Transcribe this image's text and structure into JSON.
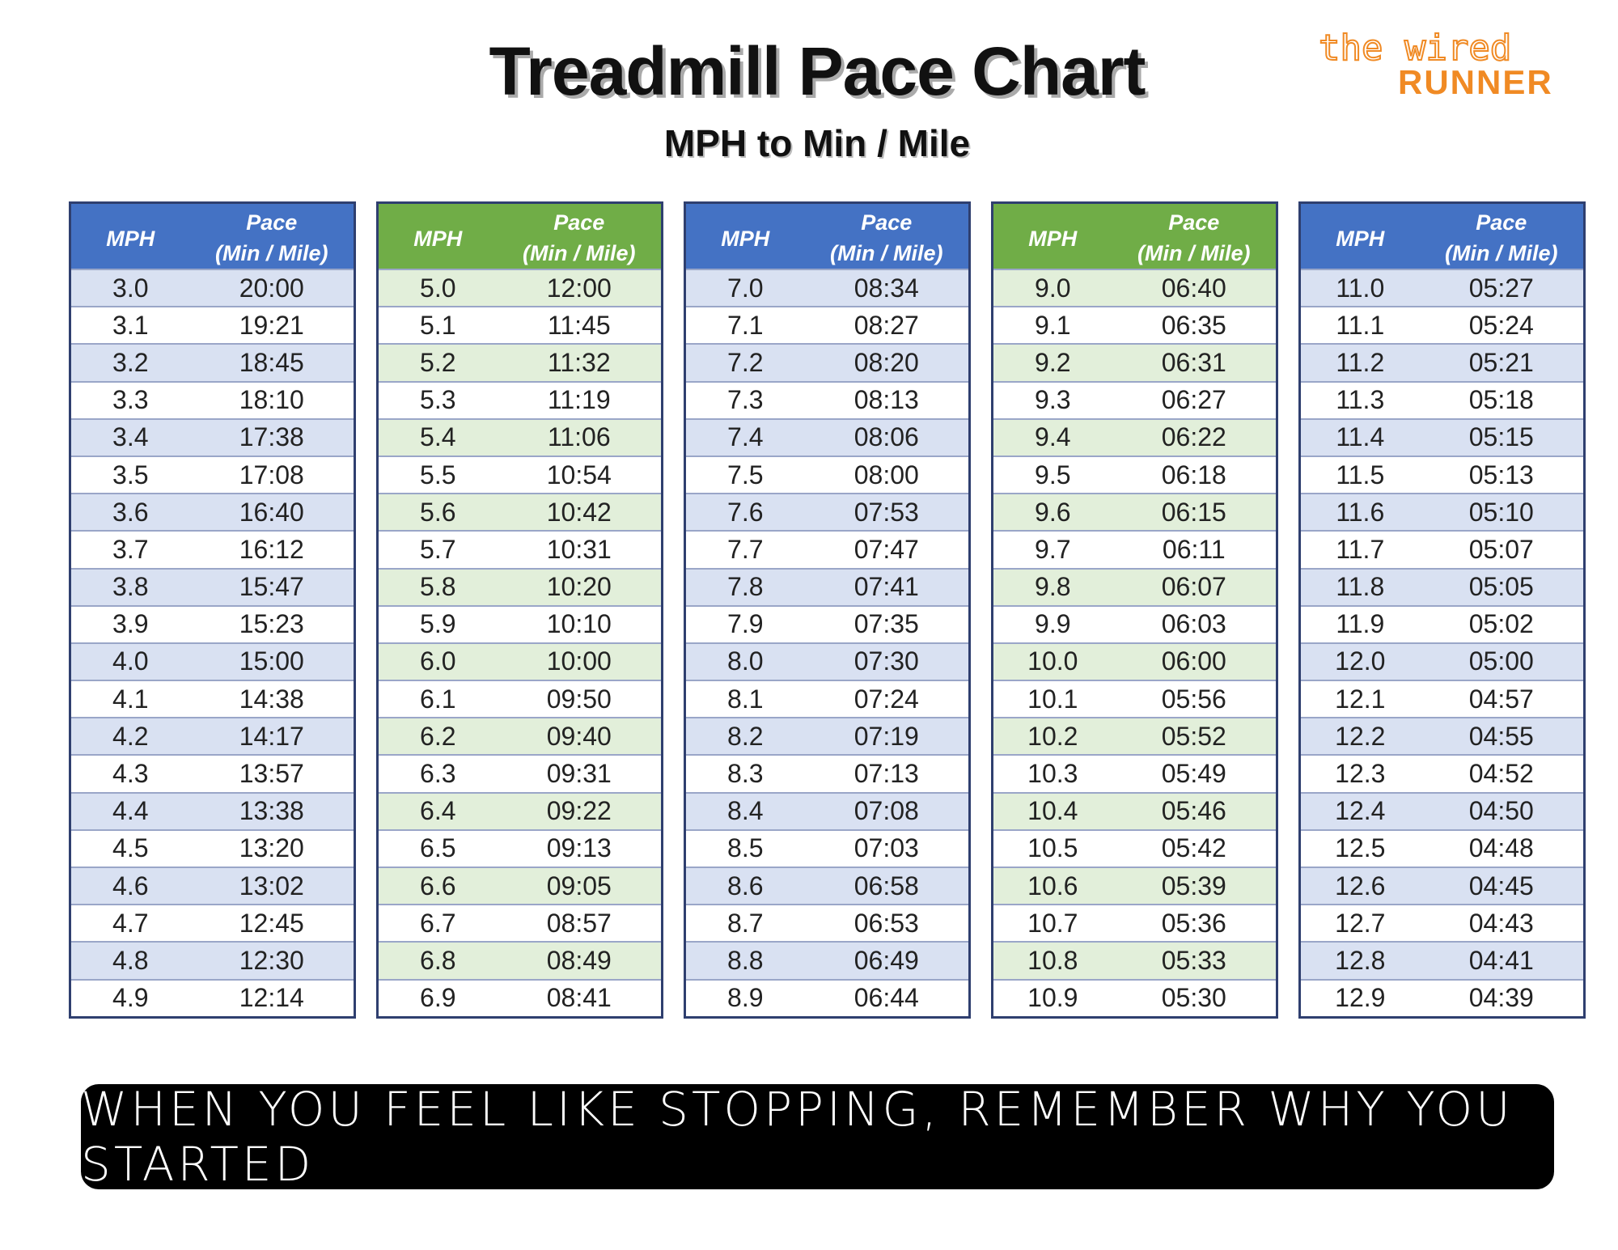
{
  "header": {
    "title": "Treadmill Pace Chart",
    "subtitle": "MPH to Min / Mile"
  },
  "logo": {
    "line1": "the wired",
    "line2": "RUNNER"
  },
  "tables": [
    {
      "color": "#4472c4",
      "stripe": "#d9e1f2",
      "columns": [
        "MPH",
        "Pace",
        "(Min / Mile)"
      ],
      "rows": [
        [
          "3.0",
          "20:00"
        ],
        [
          "3.1",
          "19:21"
        ],
        [
          "3.2",
          "18:45"
        ],
        [
          "3.3",
          "18:10"
        ],
        [
          "3.4",
          "17:38"
        ],
        [
          "3.5",
          "17:08"
        ],
        [
          "3.6",
          "16:40"
        ],
        [
          "3.7",
          "16:12"
        ],
        [
          "3.8",
          "15:47"
        ],
        [
          "3.9",
          "15:23"
        ],
        [
          "4.0",
          "15:00"
        ],
        [
          "4.1",
          "14:38"
        ],
        [
          "4.2",
          "14:17"
        ],
        [
          "4.3",
          "13:57"
        ],
        [
          "4.4",
          "13:38"
        ],
        [
          "4.5",
          "13:20"
        ],
        [
          "4.6",
          "13:02"
        ],
        [
          "4.7",
          "12:45"
        ],
        [
          "4.8",
          "12:30"
        ],
        [
          "4.9",
          "12:14"
        ]
      ]
    },
    {
      "color": "#70ad47",
      "stripe": "#e2efda",
      "columns": [
        "MPH",
        "Pace",
        "(Min / Mile)"
      ],
      "rows": [
        [
          "5.0",
          "12:00"
        ],
        [
          "5.1",
          "11:45"
        ],
        [
          "5.2",
          "11:32"
        ],
        [
          "5.3",
          "11:19"
        ],
        [
          "5.4",
          "11:06"
        ],
        [
          "5.5",
          "10:54"
        ],
        [
          "5.6",
          "10:42"
        ],
        [
          "5.7",
          "10:31"
        ],
        [
          "5.8",
          "10:20"
        ],
        [
          "5.9",
          "10:10"
        ],
        [
          "6.0",
          "10:00"
        ],
        [
          "6.1",
          "09:50"
        ],
        [
          "6.2",
          "09:40"
        ],
        [
          "6.3",
          "09:31"
        ],
        [
          "6.4",
          "09:22"
        ],
        [
          "6.5",
          "09:13"
        ],
        [
          "6.6",
          "09:05"
        ],
        [
          "6.7",
          "08:57"
        ],
        [
          "6.8",
          "08:49"
        ],
        [
          "6.9",
          "08:41"
        ]
      ]
    },
    {
      "color": "#4472c4",
      "stripe": "#d9e1f2",
      "columns": [
        "MPH",
        "Pace",
        "(Min / Mile)"
      ],
      "rows": [
        [
          "7.0",
          "08:34"
        ],
        [
          "7.1",
          "08:27"
        ],
        [
          "7.2",
          "08:20"
        ],
        [
          "7.3",
          "08:13"
        ],
        [
          "7.4",
          "08:06"
        ],
        [
          "7.5",
          "08:00"
        ],
        [
          "7.6",
          "07:53"
        ],
        [
          "7.7",
          "07:47"
        ],
        [
          "7.8",
          "07:41"
        ],
        [
          "7.9",
          "07:35"
        ],
        [
          "8.0",
          "07:30"
        ],
        [
          "8.1",
          "07:24"
        ],
        [
          "8.2",
          "07:19"
        ],
        [
          "8.3",
          "07:13"
        ],
        [
          "8.4",
          "07:08"
        ],
        [
          "8.5",
          "07:03"
        ],
        [
          "8.6",
          "06:58"
        ],
        [
          "8.7",
          "06:53"
        ],
        [
          "8.8",
          "06:49"
        ],
        [
          "8.9",
          "06:44"
        ]
      ]
    },
    {
      "color": "#70ad47",
      "stripe": "#e2efda",
      "columns": [
        "MPH",
        "Pace",
        "(Min / Mile)"
      ],
      "rows": [
        [
          "9.0",
          "06:40"
        ],
        [
          "9.1",
          "06:35"
        ],
        [
          "9.2",
          "06:31"
        ],
        [
          "9.3",
          "06:27"
        ],
        [
          "9.4",
          "06:22"
        ],
        [
          "9.5",
          "06:18"
        ],
        [
          "9.6",
          "06:15"
        ],
        [
          "9.7",
          "06:11"
        ],
        [
          "9.8",
          "06:07"
        ],
        [
          "9.9",
          "06:03"
        ],
        [
          "10.0",
          "06:00"
        ],
        [
          "10.1",
          "05:56"
        ],
        [
          "10.2",
          "05:52"
        ],
        [
          "10.3",
          "05:49"
        ],
        [
          "10.4",
          "05:46"
        ],
        [
          "10.5",
          "05:42"
        ],
        [
          "10.6",
          "05:39"
        ],
        [
          "10.7",
          "05:36"
        ],
        [
          "10.8",
          "05:33"
        ],
        [
          "10.9",
          "05:30"
        ]
      ]
    },
    {
      "color": "#4472c4",
      "stripe": "#d9e1f2",
      "columns": [
        "MPH",
        "Pace",
        "(Min / Mile)"
      ],
      "rows": [
        [
          "11.0",
          "05:27"
        ],
        [
          "11.1",
          "05:24"
        ],
        [
          "11.2",
          "05:21"
        ],
        [
          "11.3",
          "05:18"
        ],
        [
          "11.4",
          "05:15"
        ],
        [
          "11.5",
          "05:13"
        ],
        [
          "11.6",
          "05:10"
        ],
        [
          "11.7",
          "05:07"
        ],
        [
          "11.8",
          "05:05"
        ],
        [
          "11.9",
          "05:02"
        ],
        [
          "12.0",
          "05:00"
        ],
        [
          "12.1",
          "04:57"
        ],
        [
          "12.2",
          "04:55"
        ],
        [
          "12.3",
          "04:52"
        ],
        [
          "12.4",
          "04:50"
        ],
        [
          "12.5",
          "04:48"
        ],
        [
          "12.6",
          "04:45"
        ],
        [
          "12.7",
          "04:43"
        ],
        [
          "12.8",
          "04:41"
        ],
        [
          "12.9",
          "04:39"
        ]
      ]
    }
  ],
  "quote": "WHEN YOU FEEL LIKE STOPPING, REMEMBER WHY YOU STARTED"
}
